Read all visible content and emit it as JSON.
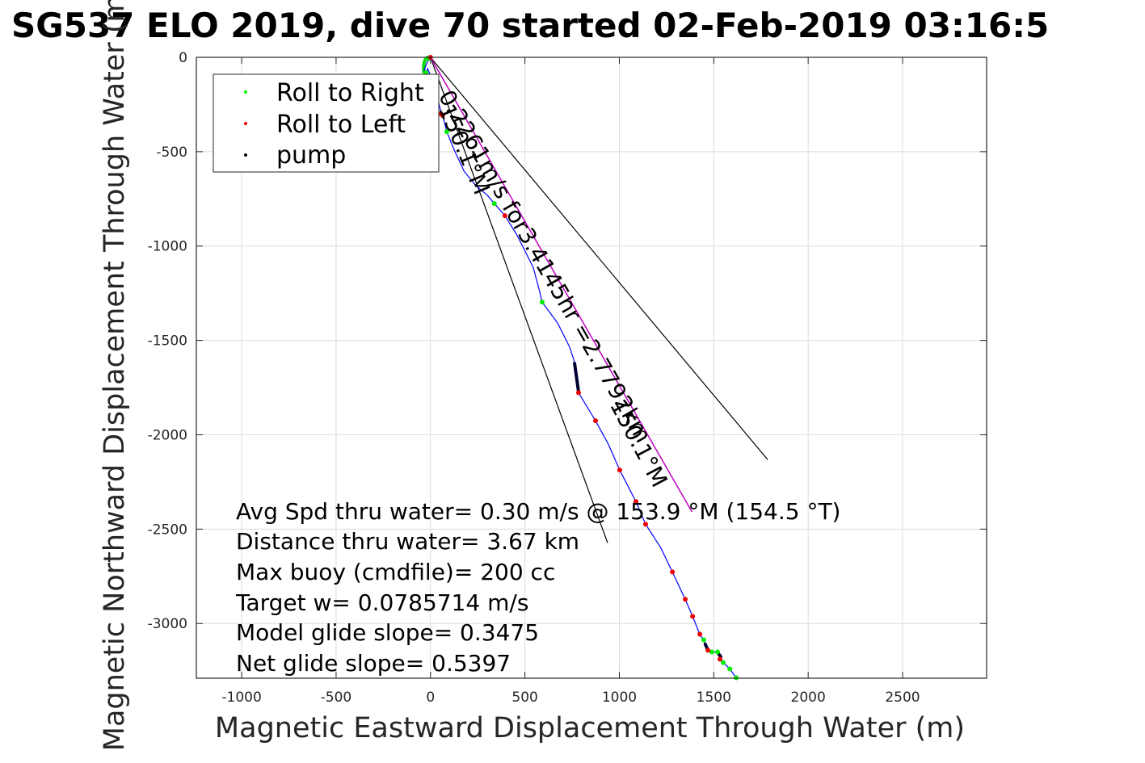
{
  "chart_data": {
    "type": "line",
    "title": "SG537 ELO 2019, dive 70 started 02-Feb-2019 03:16:5",
    "xlabel": "Magnetic Eastward Displacement Through Water (m)",
    "ylabel": "Magnetic Northward Displacement Through Water (m)",
    "xlim": [
      -1240,
      2945
    ],
    "ylim": [
      -3290,
      0
    ],
    "xticks": [
      -1000,
      -500,
      0,
      500,
      1000,
      1500,
      2000,
      2500
    ],
    "yticks": [
      0,
      -500,
      -1000,
      -1500,
      -2000,
      -2500,
      -3000
    ],
    "grid": true,
    "legend": {
      "placement": "top-left",
      "entries": [
        {
          "label": "Roll to Right",
          "color": "#00ff00"
        },
        {
          "label": "Roll to Left",
          "color": "#ff0000"
        },
        {
          "label": "pump",
          "color": "#000000"
        }
      ]
    },
    "track": {
      "name": "glider track",
      "color": "#0000ff",
      "x": [
        0,
        -20,
        -34,
        -30,
        -15,
        30,
        50,
        60,
        70,
        86,
        98,
        124,
        178,
        240,
        300,
        338,
        394,
        458,
        544,
        578,
        591,
        673,
        737,
        758,
        763,
        784,
        874,
        942,
        1002,
        1088,
        1139,
        1220,
        1281,
        1349,
        1388,
        1426,
        1447,
        1460,
        1469,
        1490,
        1520,
        1533,
        1537,
        1550,
        1585,
        1619
      ],
      "y": [
        0,
        -30,
        -73,
        -95,
        -60,
        -180,
        -270,
        -304,
        -330,
        -394,
        -424,
        -488,
        -604,
        -680,
        -730,
        -775,
        -839,
        -942,
        -1113,
        -1241,
        -1297,
        -1408,
        -1536,
        -1600,
        -1622,
        -1777,
        -1926,
        -2050,
        -2187,
        -2354,
        -2474,
        -2600,
        -2727,
        -2872,
        -2962,
        -3057,
        -3087,
        -3120,
        -3142,
        -3151,
        -3151,
        -3168,
        -3189,
        -3207,
        -3241,
        -3288
      ]
    },
    "roll_right_points": {
      "x": [
        -24,
        -8,
        86,
        338,
        591,
        1447,
        1490,
        1520,
        1550,
        1585,
        1619
      ],
      "y": [
        -82,
        -5,
        -394,
        -775,
        -1297,
        -3087,
        -3151,
        -3151,
        -3207,
        -3241,
        -3288
      ]
    },
    "roll_left_points": {
      "x": [
        0,
        56,
        64,
        394,
        784,
        874,
        1002,
        1088,
        1139,
        1281,
        1349,
        1388,
        1426,
        1469,
        1533
      ],
      "y": [
        0,
        -300,
        -308,
        -839,
        -1777,
        -1926,
        -2187,
        -2354,
        -2474,
        -2727,
        -2872,
        -2962,
        -3057,
        -3142,
        -3189
      ]
    },
    "pump_segments": [
      {
        "x": [
          763,
          784
        ],
        "y": [
          -1622,
          -1772
        ]
      },
      {
        "x": [
          1455,
          1469
        ],
        "y": [
          -3110,
          -3140
        ]
      },
      {
        "x": [
          1525,
          1537
        ],
        "y": [
          -3160,
          -3176
        ]
      }
    ],
    "heading_line": {
      "color": "#c000c0",
      "label": "0.2261m/s for3.4145hr =2.7792km",
      "heading_label": "150.1°M",
      "x": [
        0,
        1385
      ],
      "y": [
        0,
        -2409
      ]
    },
    "bound_lines": [
      {
        "color": "#000000",
        "x": [
          0,
          1786
        ],
        "y": [
          0,
          -2132
        ]
      },
      {
        "color": "#000000",
        "x": [
          0,
          938
        ],
        "y": [
          0,
          -2573
        ]
      }
    ],
    "annotations": {
      "heading_label_upper": "150.1°M",
      "heading_label_lower": "150.1°M",
      "speed_label": "0.2261m/s for3.4145hr =2.7792km"
    },
    "stats": [
      "Avg Spd thru water=  0.30 m/s @ 153.9 °M (154.5 °T)",
      "Distance thru water=  3.67 km",
      "Max buoy (cmdfile)= 200 cc",
      "Target w= 0.0785714 m/s",
      "Model glide slope= 0.3475",
      "Net glide slope= 0.5397"
    ]
  }
}
